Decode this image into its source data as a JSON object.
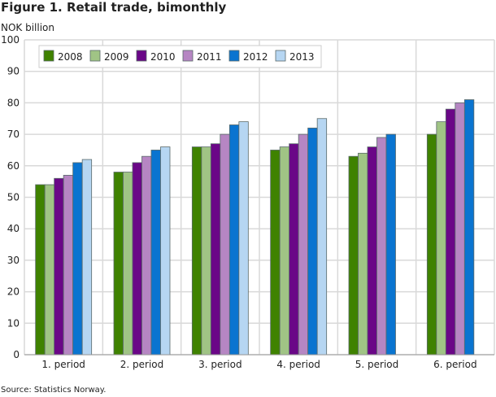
{
  "chart_data": {
    "type": "bar",
    "title": "Figure 1. Retail trade, bimonthly",
    "ylabel": "NOK billion",
    "xlabel": "",
    "source": "Source: Statistics Norway.",
    "ylim": [
      0,
      100
    ],
    "yticks": [
      0,
      10,
      20,
      30,
      40,
      50,
      60,
      70,
      80,
      90,
      100
    ],
    "grid": true,
    "legend_placement": "top-left",
    "categories": [
      "1. period",
      "2. period",
      "3. period",
      "4. period",
      "5. period",
      "6. period"
    ],
    "series": [
      {
        "name": "2008",
        "color": "#3f8200",
        "values": [
          54,
          58,
          66,
          65,
          63,
          70
        ]
      },
      {
        "name": "2009",
        "color": "#a0c485",
        "values": [
          54,
          58,
          66,
          66,
          64,
          74
        ]
      },
      {
        "name": "2010",
        "color": "#6a0787",
        "values": [
          56,
          61,
          67,
          67,
          66,
          78
        ]
      },
      {
        "name": "2011",
        "color": "#b686c3",
        "values": [
          57,
          63,
          70,
          70,
          69,
          80
        ]
      },
      {
        "name": "2012",
        "color": "#0a74d0",
        "values": [
          61,
          65,
          73,
          72,
          70,
          81
        ]
      },
      {
        "name": "2013",
        "color": "#b6d6f2",
        "values": [
          62,
          66,
          74,
          75,
          null,
          null
        ]
      }
    ]
  }
}
